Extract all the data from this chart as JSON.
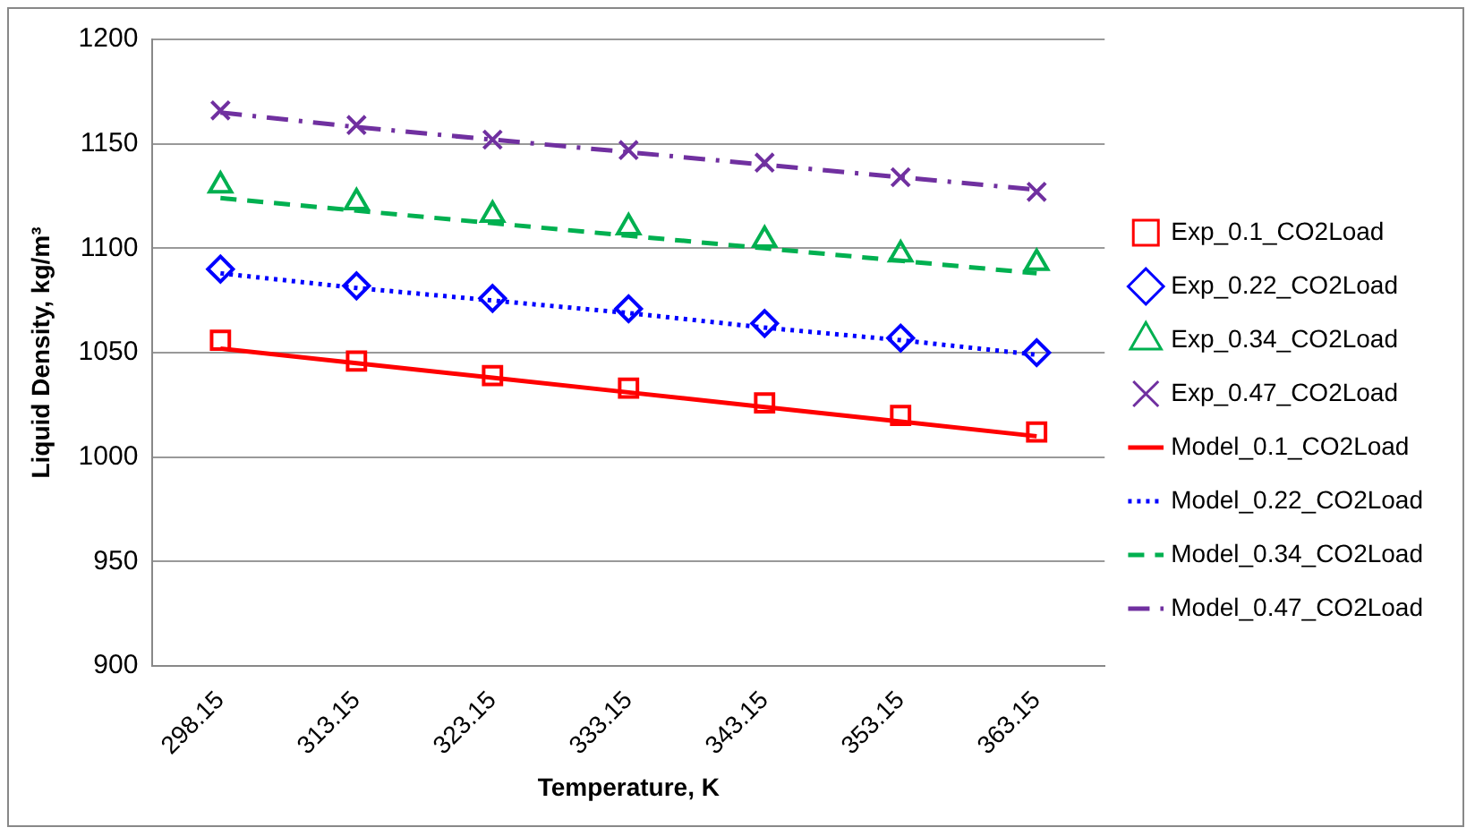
{
  "chart_data": {
    "type": "line",
    "xlabel": "Temperature, K",
    "ylabel": "Liquid Density, kg/m³",
    "categories": [
      "298.15",
      "313.15",
      "323.15",
      "333.15",
      "343.15",
      "353.15",
      "363.15"
    ],
    "ylim": [
      900,
      1200
    ],
    "yticks": [
      900,
      950,
      1000,
      1050,
      1100,
      1150,
      1200
    ],
    "grid": "y",
    "legend": "right",
    "series": [
      {
        "name": "Exp_0.1_CO2Load",
        "type": "scatter",
        "marker": "square",
        "color": "#ff0000",
        "values": [
          1056,
          1046,
          1039,
          1033,
          1026,
          1020,
          1012
        ]
      },
      {
        "name": "Exp_0.22_CO2Load",
        "type": "scatter",
        "marker": "diamond",
        "color": "#0000ff",
        "values": [
          1090,
          1082,
          1076,
          1071,
          1064,
          1057,
          1050
        ]
      },
      {
        "name": "Exp_0.34_CO2Load",
        "type": "scatter",
        "marker": "triangle",
        "color": "#00b050",
        "values": [
          1130,
          1122,
          1116,
          1110,
          1104,
          1097,
          1093
        ]
      },
      {
        "name": "Exp_0.47_CO2Load",
        "type": "scatter",
        "marker": "cross",
        "color": "#7030a0",
        "values": [
          1166,
          1159,
          1152,
          1147,
          1141,
          1134,
          1127
        ]
      },
      {
        "name": "Model_0.1_CO2Load",
        "type": "line",
        "marker": "none",
        "line_style": "solid",
        "color": "#ff0000",
        "values": [
          1052,
          1045,
          1038,
          1031,
          1024,
          1017,
          1010
        ]
      },
      {
        "name": "Model_0.22_CO2Load",
        "type": "line",
        "marker": "none",
        "line_style": "dotted",
        "color": "#0000ff",
        "values": [
          1088,
          1081,
          1075,
          1069,
          1062,
          1056,
          1049
        ]
      },
      {
        "name": "Model_0.34_CO2Load",
        "type": "line",
        "marker": "none",
        "line_style": "dashed",
        "color": "#00b050",
        "values": [
          1124,
          1118,
          1112,
          1106,
          1100,
          1094,
          1088
        ]
      },
      {
        "name": "Model_0.47_CO2Load",
        "type": "line",
        "marker": "none",
        "line_style": "dashdot",
        "color": "#7030a0",
        "values": [
          1165,
          1158,
          1152,
          1146,
          1140,
          1134,
          1128
        ]
      }
    ]
  }
}
